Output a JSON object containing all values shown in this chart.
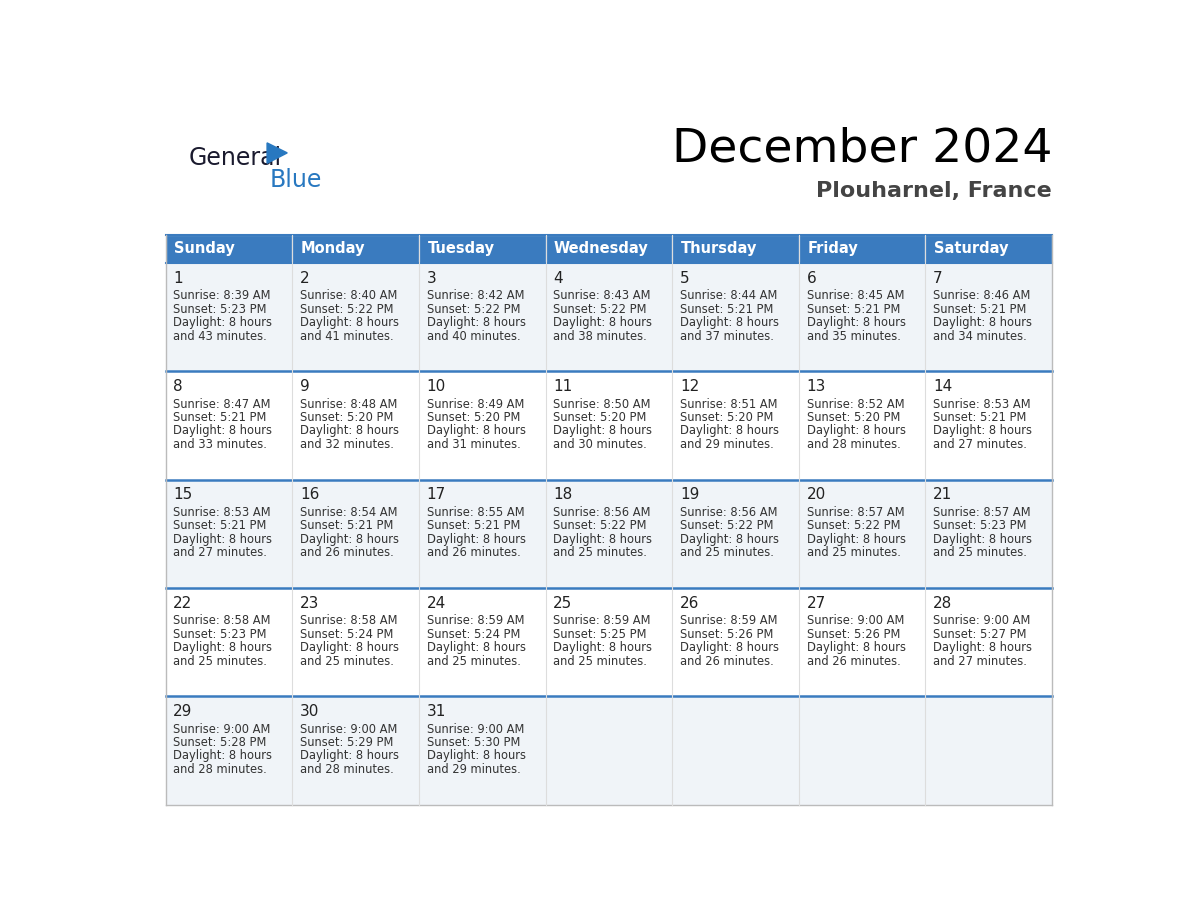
{
  "title": "December 2024",
  "subtitle": "Plouharnel, France",
  "header_color": "#3a7bbf",
  "header_text_color": "#ffffff",
  "cell_bg_even": "#f0f4f8",
  "cell_bg_odd": "#ffffff",
  "text_color": "#333333",
  "days_of_week": [
    "Sunday",
    "Monday",
    "Tuesday",
    "Wednesday",
    "Thursday",
    "Friday",
    "Saturday"
  ],
  "calendar": [
    [
      {
        "day": "1",
        "sunrise": "8:39 AM",
        "sunset": "5:23 PM",
        "daylight_h": "8 hours",
        "daylight_m": "and 43 minutes."
      },
      {
        "day": "2",
        "sunrise": "8:40 AM",
        "sunset": "5:22 PM",
        "daylight_h": "8 hours",
        "daylight_m": "and 41 minutes."
      },
      {
        "day": "3",
        "sunrise": "8:42 AM",
        "sunset": "5:22 PM",
        "daylight_h": "8 hours",
        "daylight_m": "and 40 minutes."
      },
      {
        "day": "4",
        "sunrise": "8:43 AM",
        "sunset": "5:22 PM",
        "daylight_h": "8 hours",
        "daylight_m": "and 38 minutes."
      },
      {
        "day": "5",
        "sunrise": "8:44 AM",
        "sunset": "5:21 PM",
        "daylight_h": "8 hours",
        "daylight_m": "and 37 minutes."
      },
      {
        "day": "6",
        "sunrise": "8:45 AM",
        "sunset": "5:21 PM",
        "daylight_h": "8 hours",
        "daylight_m": "and 35 minutes."
      },
      {
        "day": "7",
        "sunrise": "8:46 AM",
        "sunset": "5:21 PM",
        "daylight_h": "8 hours",
        "daylight_m": "and 34 minutes."
      }
    ],
    [
      {
        "day": "8",
        "sunrise": "8:47 AM",
        "sunset": "5:21 PM",
        "daylight_h": "8 hours",
        "daylight_m": "and 33 minutes."
      },
      {
        "day": "9",
        "sunrise": "8:48 AM",
        "sunset": "5:20 PM",
        "daylight_h": "8 hours",
        "daylight_m": "and 32 minutes."
      },
      {
        "day": "10",
        "sunrise": "8:49 AM",
        "sunset": "5:20 PM",
        "daylight_h": "8 hours",
        "daylight_m": "and 31 minutes."
      },
      {
        "day": "11",
        "sunrise": "8:50 AM",
        "sunset": "5:20 PM",
        "daylight_h": "8 hours",
        "daylight_m": "and 30 minutes."
      },
      {
        "day": "12",
        "sunrise": "8:51 AM",
        "sunset": "5:20 PM",
        "daylight_h": "8 hours",
        "daylight_m": "and 29 minutes."
      },
      {
        "day": "13",
        "sunrise": "8:52 AM",
        "sunset": "5:20 PM",
        "daylight_h": "8 hours",
        "daylight_m": "and 28 minutes."
      },
      {
        "day": "14",
        "sunrise": "8:53 AM",
        "sunset": "5:21 PM",
        "daylight_h": "8 hours",
        "daylight_m": "and 27 minutes."
      }
    ],
    [
      {
        "day": "15",
        "sunrise": "8:53 AM",
        "sunset": "5:21 PM",
        "daylight_h": "8 hours",
        "daylight_m": "and 27 minutes."
      },
      {
        "day": "16",
        "sunrise": "8:54 AM",
        "sunset": "5:21 PM",
        "daylight_h": "8 hours",
        "daylight_m": "and 26 minutes."
      },
      {
        "day": "17",
        "sunrise": "8:55 AM",
        "sunset": "5:21 PM",
        "daylight_h": "8 hours",
        "daylight_m": "and 26 minutes."
      },
      {
        "day": "18",
        "sunrise": "8:56 AM",
        "sunset": "5:22 PM",
        "daylight_h": "8 hours",
        "daylight_m": "and 25 minutes."
      },
      {
        "day": "19",
        "sunrise": "8:56 AM",
        "sunset": "5:22 PM",
        "daylight_h": "8 hours",
        "daylight_m": "and 25 minutes."
      },
      {
        "day": "20",
        "sunrise": "8:57 AM",
        "sunset": "5:22 PM",
        "daylight_h": "8 hours",
        "daylight_m": "and 25 minutes."
      },
      {
        "day": "21",
        "sunrise": "8:57 AM",
        "sunset": "5:23 PM",
        "daylight_h": "8 hours",
        "daylight_m": "and 25 minutes."
      }
    ],
    [
      {
        "day": "22",
        "sunrise": "8:58 AM",
        "sunset": "5:23 PM",
        "daylight_h": "8 hours",
        "daylight_m": "and 25 minutes."
      },
      {
        "day": "23",
        "sunrise": "8:58 AM",
        "sunset": "5:24 PM",
        "daylight_h": "8 hours",
        "daylight_m": "and 25 minutes."
      },
      {
        "day": "24",
        "sunrise": "8:59 AM",
        "sunset": "5:24 PM",
        "daylight_h": "8 hours",
        "daylight_m": "and 25 minutes."
      },
      {
        "day": "25",
        "sunrise": "8:59 AM",
        "sunset": "5:25 PM",
        "daylight_h": "8 hours",
        "daylight_m": "and 25 minutes."
      },
      {
        "day": "26",
        "sunrise": "8:59 AM",
        "sunset": "5:26 PM",
        "daylight_h": "8 hours",
        "daylight_m": "and 26 minutes."
      },
      {
        "day": "27",
        "sunrise": "9:00 AM",
        "sunset": "5:26 PM",
        "daylight_h": "8 hours",
        "daylight_m": "and 26 minutes."
      },
      {
        "day": "28",
        "sunrise": "9:00 AM",
        "sunset": "5:27 PM",
        "daylight_h": "8 hours",
        "daylight_m": "and 27 minutes."
      }
    ],
    [
      {
        "day": "29",
        "sunrise": "9:00 AM",
        "sunset": "5:28 PM",
        "daylight_h": "8 hours",
        "daylight_m": "and 28 minutes."
      },
      {
        "day": "30",
        "sunrise": "9:00 AM",
        "sunset": "5:29 PM",
        "daylight_h": "8 hours",
        "daylight_m": "and 28 minutes."
      },
      {
        "day": "31",
        "sunrise": "9:00 AM",
        "sunset": "5:30 PM",
        "daylight_h": "8 hours",
        "daylight_m": "and 29 minutes."
      },
      null,
      null,
      null,
      null
    ]
  ]
}
